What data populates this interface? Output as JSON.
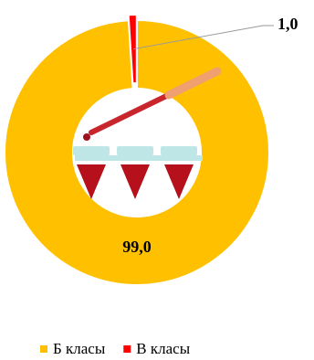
{
  "chart_data": {
    "type": "donut",
    "categories": [
      "Б класы",
      "В класы"
    ],
    "values": [
      99.0,
      1.0
    ],
    "value_labels": [
      "99,0",
      "1,0"
    ],
    "colors": [
      "#FFC000",
      "#FF0000"
    ],
    "legend": "bottom"
  }
}
